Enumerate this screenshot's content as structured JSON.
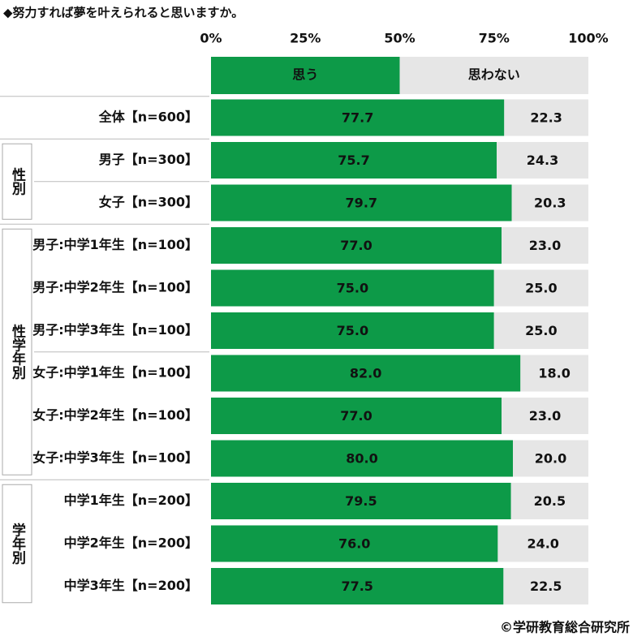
{
  "chart_data": {
    "type": "stacked-bar-horizontal",
    "title": "◆努力すれば夢を叶えられると思いますか。",
    "categories": [
      "全体【n=600】",
      "男子【n=300】",
      "女子【n=300】",
      "男子:中学1年生【n=100】",
      "男子:中学2年生【n=100】",
      "男子:中学3年生【n=100】",
      "女子:中学1年生【n=100】",
      "女子:中学2年生【n=100】",
      "女子:中学3年生【n=100】",
      "中学1年生【n=200】",
      "中学2年生【n=200】",
      "中学3年生【n=200】"
    ],
    "group_labels": [
      null,
      "性別",
      "性別",
      "性学年別",
      "性学年別",
      "性学年別",
      "性学年別",
      "性学年別",
      "性学年別",
      "学年別",
      "学年別",
      "学年別"
    ],
    "series": [
      {
        "name": "思う",
        "color": "#0d9a48",
        "values": [
          77.7,
          75.7,
          79.7,
          77.0,
          75.0,
          75.0,
          82.0,
          77.0,
          80.0,
          79.5,
          76.0,
          77.5
        ],
        "value_labels": [
          "77.7",
          "75.7",
          "79.7",
          "77.0",
          "75.0",
          "75.0",
          "82.0",
          "77.0",
          "80.0",
          "79.5",
          "76.0",
          "77.5"
        ]
      },
      {
        "name": "思わない",
        "color": "#e6e6e6",
        "values": [
          22.3,
          24.3,
          20.3,
          23.0,
          25.0,
          25.0,
          18.0,
          23.0,
          20.0,
          20.5,
          24.0,
          22.5
        ],
        "value_labels": [
          "22.3",
          "24.3",
          "20.3",
          "23.0",
          "25.0",
          "25.0",
          "18.0",
          "23.0",
          "20.0",
          "20.5",
          "24.0",
          "22.5"
        ]
      }
    ],
    "xlim": [
      0,
      100
    ],
    "xticks": [
      {
        "value": 0,
        "label": "0%"
      },
      {
        "value": 25,
        "label": "25%"
      },
      {
        "value": 50,
        "label": "50%"
      },
      {
        "value": 75,
        "label": "75%"
      },
      {
        "value": 100,
        "label": "100%"
      }
    ],
    "footer": "©学研教育総合研究所"
  }
}
